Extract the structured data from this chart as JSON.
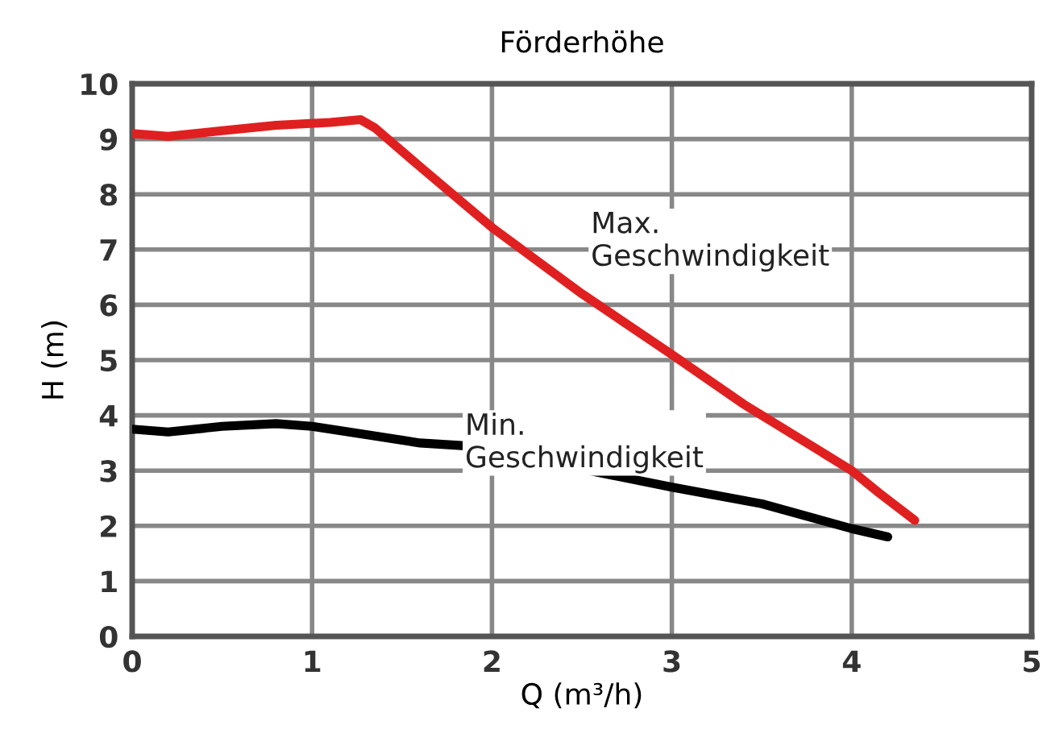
{
  "chart_data": {
    "type": "line",
    "title": "Förderhöhe",
    "xlabel": "Q (m³/h)",
    "ylabel": "H (m)",
    "xlim": [
      0,
      5
    ],
    "xticks": [
      0,
      1,
      2,
      3,
      4,
      5
    ],
    "ylim": [
      0,
      10
    ],
    "yticks": [
      0,
      1,
      2,
      3,
      4,
      5,
      6,
      7,
      8,
      9,
      10
    ],
    "grid": true,
    "legend": false,
    "marker": "none",
    "line_style": "solid",
    "series": [
      {
        "color": "#e02020",
        "x": [
          0,
          0.2,
          0.5,
          0.8,
          1.1,
          1.27,
          1.35,
          1.6,
          2,
          2.5,
          3,
          3.4,
          3.7,
          4,
          4.15,
          4.35
        ],
        "values": [
          9.1,
          9.05,
          9.15,
          9.25,
          9.3,
          9.35,
          9.2,
          8.5,
          7.4,
          6.2,
          5.1,
          4.2,
          3.6,
          3.0,
          2.6,
          2.1
        ]
      },
      {
        "color": "#000000",
        "x": [
          0,
          0.2,
          0.5,
          0.8,
          1.0,
          1.3,
          1.6,
          1.85,
          3.0,
          3.5,
          4.0,
          4.2
        ],
        "values": [
          3.75,
          3.7,
          3.8,
          3.85,
          3.8,
          3.65,
          3.5,
          3.45,
          2.7,
          2.4,
          1.95,
          1.8
        ]
      }
    ],
    "annotations": [
      "Max.\nGeschwindigkeit",
      "Min.\nGeschwindigkeit"
    ]
  }
}
